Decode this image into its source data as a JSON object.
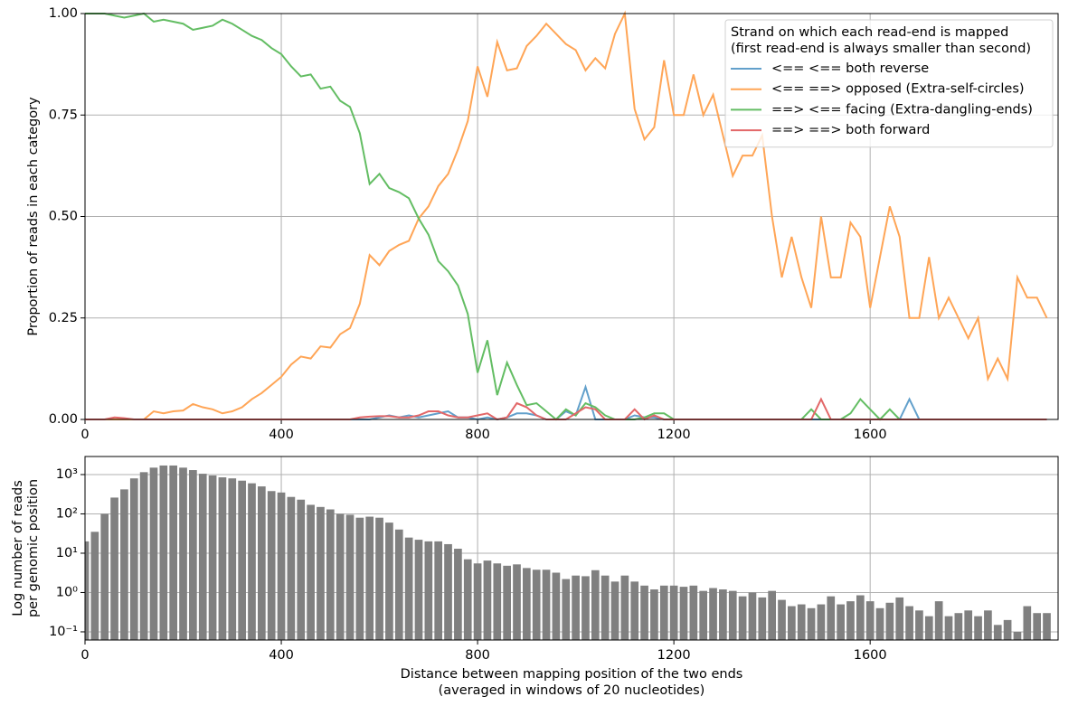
{
  "chart_data": [
    {
      "type": "line",
      "ylabel": "Proportion of reads in each category",
      "x": [
        0,
        20,
        40,
        60,
        80,
        100,
        120,
        140,
        160,
        180,
        200,
        220,
        240,
        260,
        280,
        300,
        320,
        340,
        360,
        380,
        400,
        420,
        440,
        460,
        480,
        500,
        520,
        540,
        560,
        580,
        600,
        620,
        640,
        660,
        680,
        700,
        720,
        740,
        760,
        780,
        800,
        820,
        840,
        860,
        880,
        900,
        920,
        940,
        960,
        980,
        1000,
        1020,
        1040,
        1060,
        1080,
        1100,
        1120,
        1140,
        1160,
        1180,
        1200,
        1220,
        1240,
        1260,
        1280,
        1300,
        1320,
        1340,
        1360,
        1380,
        1400,
        1420,
        1440,
        1460,
        1480,
        1500,
        1520,
        1540,
        1560,
        1580,
        1600,
        1620,
        1640,
        1660,
        1680,
        1700,
        1720,
        1740,
        1760,
        1780,
        1800,
        1820,
        1840,
        1860,
        1880,
        1900,
        1920,
        1940,
        1960
      ],
      "series": [
        {
          "name": "<== <== both reverse",
          "color": "#62a0cb",
          "values": [
            0,
            0,
            0,
            0,
            0,
            0,
            0,
            0,
            0,
            0,
            0,
            0,
            0,
            0,
            0,
            0,
            0,
            0,
            0,
            0,
            0,
            0,
            0,
            0,
            0,
            0,
            0,
            0,
            0,
            0,
            0.005,
            0.01,
            0.005,
            0.01,
            0.005,
            0.01,
            0.015,
            0.02,
            0.005,
            0.005,
            0,
            0.005,
            0,
            0.005,
            0.015,
            0.015,
            0.01,
            0,
            0,
            0.02,
            0.01,
            0.08,
            0,
            0,
            0,
            0,
            0.01,
            0.005,
            0.005,
            0,
            0,
            0,
            0,
            0,
            0,
            0,
            0,
            0,
            0,
            0,
            0,
            0,
            0,
            0,
            0,
            0,
            0,
            0,
            0,
            0,
            0,
            0,
            0,
            0,
            0.05,
            0,
            0,
            0,
            0,
            0,
            0,
            0,
            0,
            0,
            0,
            0,
            0,
            0,
            0
          ]
        },
        {
          "name": "<== ==> opposed (Extra-self-circles)",
          "color": "#ffa556",
          "values": [
            0,
            0,
            0,
            0,
            0,
            0,
            0,
            0.02,
            0.015,
            0.02,
            0.022,
            0.038,
            0.03,
            0.025,
            0.015,
            0.02,
            0.03,
            0.05,
            0.065,
            0.085,
            0.105,
            0.135,
            0.155,
            0.15,
            0.18,
            0.177,
            0.21,
            0.225,
            0.285,
            0.405,
            0.38,
            0.415,
            0.43,
            0.44,
            0.495,
            0.525,
            0.575,
            0.605,
            0.665,
            0.735,
            0.87,
            0.795,
            0.93,
            0.86,
            0.865,
            0.92,
            0.945,
            0.975,
            0.95,
            0.925,
            0.91,
            0.86,
            0.89,
            0.865,
            0.95,
            1.0,
            0.765,
            0.69,
            0.72,
            0.885,
            0.75,
            0.75,
            0.85,
            0.75,
            0.8,
            0.7,
            0.6,
            0.65,
            0.65,
            0.7,
            0.5,
            0.35,
            0.45,
            0.35,
            0.275,
            0.5,
            0.35,
            0.35,
            0.485,
            0.45,
            0.275,
            0.4,
            0.525,
            0.45,
            0.25,
            0.25,
            0.4,
            0.25,
            0.3,
            0.25,
            0.2,
            0.25,
            0.1,
            0.15,
            0.1,
            0.35,
            0.3,
            0.3,
            0.25
          ]
        },
        {
          "name": "==> <== facing (Extra-dangling-ends)",
          "color": "#63bd63",
          "values": [
            1.0,
            1.0,
            1.0,
            0.995,
            0.99,
            0.995,
            1.0,
            0.98,
            0.985,
            0.98,
            0.975,
            0.96,
            0.965,
            0.97,
            0.985,
            0.975,
            0.96,
            0.945,
            0.935,
            0.915,
            0.9,
            0.87,
            0.845,
            0.85,
            0.815,
            0.82,
            0.785,
            0.77,
            0.705,
            0.58,
            0.605,
            0.57,
            0.56,
            0.545,
            0.495,
            0.455,
            0.39,
            0.365,
            0.33,
            0.26,
            0.115,
            0.195,
            0.06,
            0.14,
            0.085,
            0.035,
            0.04,
            0.02,
            0,
            0.025,
            0.01,
            0.04,
            0.03,
            0.01,
            0,
            0,
            0,
            0.005,
            0.015,
            0.015,
            0,
            0,
            0,
            0,
            0,
            0,
            0,
            0,
            0,
            0,
            0,
            0,
            0,
            0,
            0.025,
            0,
            0,
            0,
            0.015,
            0.05,
            0.025,
            0,
            0.025,
            0,
            0,
            0,
            0,
            0,
            0,
            0,
            0,
            0,
            0,
            0,
            0,
            0,
            0,
            0,
            0
          ]
        },
        {
          "name": "==> ==> both forward",
          "color": "#e26768",
          "values": [
            0,
            0,
            0,
            0.005,
            0.003,
            0,
            0,
            0,
            0,
            0,
            0,
            0,
            0,
            0,
            0,
            0,
            0,
            0,
            0,
            0,
            0,
            0,
            0,
            0,
            0,
            0,
            0,
            0,
            0.005,
            0.007,
            0.008,
            0.008,
            0.005,
            0.005,
            0.01,
            0.02,
            0.02,
            0.01,
            0.005,
            0.005,
            0.01,
            0.015,
            0,
            0.005,
            0.04,
            0.03,
            0.01,
            0,
            0,
            0,
            0.015,
            0.03,
            0.025,
            0,
            0,
            0,
            0.025,
            0,
            0.01,
            0,
            0,
            0,
            0,
            0,
            0,
            0,
            0,
            0,
            0,
            0,
            0,
            0,
            0,
            0,
            0,
            0.05,
            0,
            0,
            0,
            0,
            0,
            0,
            0,
            0,
            0,
            0,
            0,
            0,
            0,
            0,
            0,
            0,
            0,
            0,
            0,
            0,
            0,
            0,
            0
          ]
        }
      ],
      "xlim": [
        0,
        1983
      ],
      "ylim": [
        0,
        1
      ],
      "xticks": [
        0,
        400,
        800,
        1200,
        1600
      ],
      "yticks": [
        {
          "value": 0,
          "label": "0.00"
        },
        {
          "value": 0.25,
          "label": "0.25"
        },
        {
          "value": 0.5,
          "label": "0.50"
        },
        {
          "value": 0.75,
          "label": "0.75"
        },
        {
          "value": 1,
          "label": "1.00"
        }
      ],
      "grid": true,
      "legend_title": [
        "Strand on which each read-end is mapped",
        "(first read-end is always smaller than second)"
      ],
      "legend": "upper right"
    },
    {
      "type": "bar",
      "ylabel": [
        "Log number of reads",
        "per genomic position"
      ],
      "xlabel": [
        "Distance between mapping position of the two ends",
        "(averaged in windows of 20 nucleotides)"
      ],
      "x": [
        0,
        20,
        40,
        60,
        80,
        100,
        120,
        140,
        160,
        180,
        200,
        220,
        240,
        260,
        280,
        300,
        320,
        340,
        360,
        380,
        400,
        420,
        440,
        460,
        480,
        500,
        520,
        540,
        560,
        580,
        600,
        620,
        640,
        660,
        680,
        700,
        720,
        740,
        760,
        780,
        800,
        820,
        840,
        860,
        880,
        900,
        920,
        940,
        960,
        980,
        1000,
        1020,
        1040,
        1060,
        1080,
        1100,
        1120,
        1140,
        1160,
        1180,
        1200,
        1220,
        1240,
        1260,
        1280,
        1300,
        1320,
        1340,
        1360,
        1380,
        1400,
        1420,
        1440,
        1460,
        1480,
        1500,
        1520,
        1540,
        1560,
        1580,
        1600,
        1620,
        1640,
        1660,
        1680,
        1700,
        1720,
        1740,
        1760,
        1780,
        1800,
        1820,
        1840,
        1860,
        1880,
        1900,
        1920,
        1940,
        1960
      ],
      "values": [
        20,
        35,
        100,
        260,
        420,
        800,
        1150,
        1500,
        1700,
        1700,
        1500,
        1300,
        1050,
        950,
        850,
        800,
        700,
        600,
        500,
        380,
        350,
        270,
        230,
        170,
        150,
        130,
        100,
        95,
        80,
        85,
        80,
        60,
        40,
        25,
        22,
        20,
        20,
        17,
        13,
        7,
        5.5,
        6.5,
        5.5,
        4.8,
        5.2,
        4.2,
        3.8,
        3.8,
        3.2,
        2.2,
        2.7,
        2.6,
        3.7,
        2.7,
        1.9,
        2.7,
        1.9,
        1.5,
        1.2,
        1.5,
        1.5,
        1.4,
        1.5,
        1.1,
        1.3,
        1.2,
        1.1,
        0.8,
        1.0,
        0.75,
        1.1,
        0.65,
        0.45,
        0.5,
        0.4,
        0.5,
        0.8,
        0.5,
        0.6,
        0.85,
        0.6,
        0.4,
        0.55,
        0.75,
        0.45,
        0.35,
        0.25,
        0.6,
        0.25,
        0.3,
        0.35,
        0.25,
        0.35,
        0.15,
        0.2,
        0.1,
        0.45,
        0.3,
        0.3
      ],
      "color": "#808080",
      "log_scale": true,
      "xlim": [
        0,
        1983
      ],
      "ylim": [
        0.062,
        2880
      ],
      "xticks": [
        0,
        400,
        800,
        1200,
        1600
      ],
      "yticks": [
        {
          "value": 0.1,
          "label": "10⁻¹"
        },
        {
          "value": 1,
          "label": "10⁰"
        },
        {
          "value": 10,
          "label": "10¹"
        },
        {
          "value": 100,
          "label": "10²"
        },
        {
          "value": 1000,
          "label": "10³"
        }
      ],
      "grid": true
    }
  ]
}
